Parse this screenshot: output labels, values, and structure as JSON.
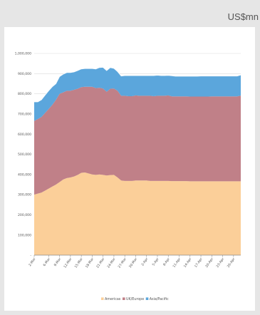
{
  "unit_label": "US$mn",
  "colors": {
    "americas": "#fbcf99",
    "uk_europe": "#c08088",
    "asia_pacific": "#5ba6dc"
  },
  "chart_data": {
    "type": "area",
    "stacked": true,
    "title": "",
    "xlabel": "",
    "ylabel": "",
    "ylim": [
      0,
      1000000
    ],
    "yticks": [
      "-",
      "100,000",
      "200,000",
      "300,000",
      "400,000",
      "500,000",
      "600,000",
      "700,000",
      "800,000",
      "900,000",
      "1,000,000"
    ],
    "x": [
      "2-Mar",
      "3-Mar",
      "4-Mar",
      "5-Mar",
      "6-Mar",
      "7-Mar",
      "8-Mar",
      "9-Mar",
      "10-Mar",
      "11-Mar",
      "12-Mar",
      "13-Mar",
      "14-Mar",
      "15-Mar",
      "16-Mar",
      "17-Mar",
      "18-Mar",
      "19-Mar",
      "20-Mar",
      "21-Mar",
      "22-Mar",
      "23-Mar",
      "24-Mar",
      "25-Mar",
      "26-Mar",
      "27-Mar",
      "28-Mar",
      "29-Mar",
      "30-Mar",
      "31-Mar",
      "1-Apr",
      "2-Apr",
      "3-Apr",
      "4-Apr",
      "5-Apr",
      "6-Apr",
      "7-Apr",
      "8-Apr",
      "9-Apr",
      "10-Apr",
      "11-Apr",
      "12-Apr",
      "13-Apr",
      "14-Apr",
      "15-Apr",
      "16-Apr",
      "17-Apr",
      "18-Apr",
      "19-Apr",
      "20-Apr",
      "21-Apr",
      "22-Apr",
      "23-Apr",
      "24-Apr",
      "25-Apr",
      "26-Apr",
      "27-Apr",
      "28-Apr"
    ],
    "xticks": [
      "2-Mar",
      "6-Mar",
      "9-Mar",
      "12-Mar",
      "15-Mar",
      "18-Mar",
      "21-Mar",
      "24-Mar",
      "27-Mar",
      "30-Mar",
      "2-Apr",
      "5-Apr",
      "8-Apr",
      "11-Apr",
      "14-Apr",
      "17-Apr",
      "20-Apr",
      "23-Apr",
      "26-Apr"
    ],
    "series": [
      {
        "name": "Americas",
        "values": [
          300000,
          305000,
          310000,
          320000,
          330000,
          340000,
          350000,
          362000,
          375000,
          382000,
          385000,
          390000,
          398000,
          408000,
          410000,
          405000,
          400000,
          398000,
          400000,
          398000,
          395000,
          397000,
          398000,
          385000,
          370000,
          368000,
          368000,
          368000,
          370000,
          370000,
          370000,
          370000,
          368000,
          368000,
          368000,
          368000,
          368000,
          368000,
          367000,
          367000,
          367000,
          367000,
          367000,
          366000,
          366000,
          366000,
          366000,
          366000,
          366000,
          366000,
          366000,
          366000,
          366000,
          366000,
          366000,
          366000,
          366000,
          366000
        ]
      },
      {
        "name": "UK/Europe",
        "values": [
          365000,
          370000,
          375000,
          385000,
          395000,
          405000,
          420000,
          438000,
          432000,
          433000,
          430000,
          430000,
          427000,
          425000,
          425000,
          430000,
          435000,
          430000,
          430000,
          428000,
          415000,
          428000,
          428000,
          430000,
          420000,
          422000,
          420000,
          420000,
          422000,
          420000,
          420000,
          420000,
          422000,
          420000,
          422000,
          422000,
          422000,
          424000,
          420000,
          420000,
          420000,
          420000,
          420000,
          420000,
          420000,
          420000,
          420000,
          420000,
          420000,
          421000,
          421000,
          421000,
          421000,
          421000,
          421000,
          421000,
          421000,
          425000
        ]
      },
      {
        "name": "Asia/Pacific",
        "values": [
          95000,
          85000,
          85000,
          88000,
          90000,
          90000,
          80000,
          85000,
          90000,
          90000,
          90000,
          88000,
          90000,
          90000,
          90000,
          90000,
          90000,
          95000,
          100000,
          105000,
          105000,
          105000,
          100000,
          95000,
          98000,
          100000,
          102000,
          102000,
          98000,
          100000,
          100000,
          100000,
          100000,
          102000,
          102000,
          100000,
          100000,
          99000,
          102000,
          100000,
          100000,
          100000,
          100000,
          101000,
          101000,
          101000,
          102000,
          102000,
          102000,
          101000,
          101000,
          101000,
          101000,
          101000,
          101000,
          101000,
          101000,
          102000
        ]
      }
    ],
    "legend_position": "bottom",
    "grid": true
  }
}
